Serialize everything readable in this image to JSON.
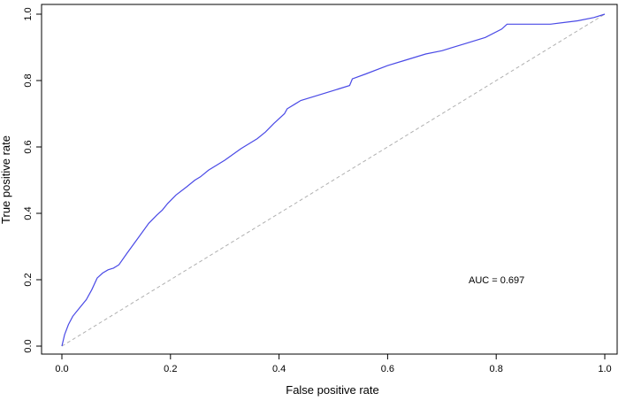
{
  "chart_data": {
    "type": "line",
    "title": "",
    "xlabel": "False positive rate",
    "ylabel": "True positive rate",
    "xlim": [
      0,
      1
    ],
    "ylim": [
      0,
      1
    ],
    "xticks": [
      "0.0",
      "0.2",
      "0.4",
      "0.6",
      "0.8",
      "1.0"
    ],
    "yticks": [
      "0.0",
      "0.2",
      "0.4",
      "0.6",
      "0.8",
      "1.0"
    ],
    "grid": false,
    "annotation": "AUC = 0.697",
    "colors": {
      "roc_line": "#4a4ae6",
      "diagonal": "#b0b0b0",
      "frame": "#000000"
    },
    "series": [
      {
        "x": [
          0.0,
          0.005,
          0.012,
          0.02,
          0.03,
          0.045,
          0.055,
          0.065,
          0.075,
          0.085,
          0.095,
          0.105,
          0.12,
          0.14,
          0.16,
          0.175,
          0.185,
          0.195,
          0.21,
          0.23,
          0.245,
          0.255,
          0.27,
          0.3,
          0.33,
          0.35,
          0.36,
          0.375,
          0.39,
          0.41,
          0.415,
          0.43,
          0.44,
          0.47,
          0.5,
          0.53,
          0.535,
          0.56,
          0.6,
          0.63,
          0.67,
          0.7,
          0.74,
          0.78,
          0.81,
          0.82,
          0.85,
          0.9,
          0.95,
          0.98,
          1.0
        ],
        "y": [
          0.0,
          0.035,
          0.065,
          0.09,
          0.11,
          0.14,
          0.17,
          0.205,
          0.22,
          0.23,
          0.235,
          0.245,
          0.28,
          0.325,
          0.37,
          0.395,
          0.41,
          0.43,
          0.455,
          0.48,
          0.5,
          0.51,
          0.53,
          0.56,
          0.595,
          0.615,
          0.625,
          0.645,
          0.67,
          0.7,
          0.715,
          0.73,
          0.74,
          0.755,
          0.77,
          0.785,
          0.805,
          0.82,
          0.845,
          0.86,
          0.88,
          0.89,
          0.91,
          0.93,
          0.955,
          0.97,
          0.97,
          0.97,
          0.98,
          0.99,
          1.0
        ]
      }
    ]
  }
}
